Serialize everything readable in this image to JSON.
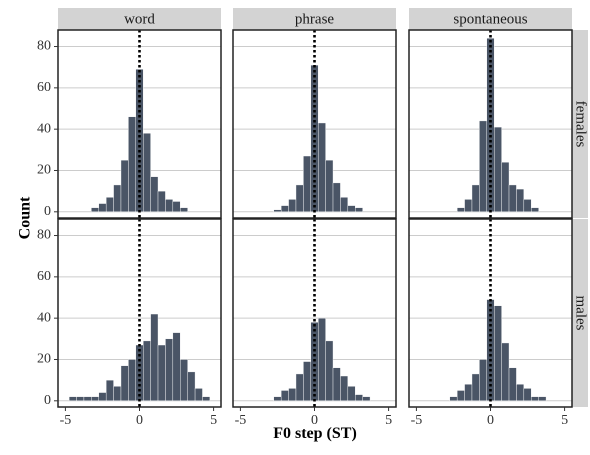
{
  "chart_data": {
    "type": "bar",
    "subtype": "faceted-histogram",
    "xlabel": "F0 step (ST)",
    "ylabel": "Count",
    "xlim": [
      -5.5,
      5.5
    ],
    "ylim": [
      -3,
      88
    ],
    "x_ticks": [
      -5,
      0,
      5
    ],
    "y_ticks": [
      0,
      20,
      40,
      60,
      80
    ],
    "bin_width": 0.5,
    "bin_centers": [
      -4.5,
      -4,
      -3.5,
      -3,
      -2.5,
      -2,
      -1.5,
      -1,
      -0.5,
      0,
      0.5,
      1,
      1.5,
      2,
      2.5,
      3,
      3.5,
      4,
      4.5
    ],
    "reference_line": {
      "x": 0,
      "style": "dotted"
    },
    "grid": true,
    "columns": [
      "word",
      "phrase",
      "spontaneous"
    ],
    "rows": [
      "females",
      "males"
    ],
    "colors": {
      "bar": "#4a5566",
      "bar_stroke": "#ffffff",
      "strip": "#d3d3d3",
      "grid": "#cccccc",
      "panel_border": "#222222",
      "reference_line": "#000000"
    },
    "panels": [
      {
        "column": "word",
        "row": "females",
        "values": [
          0,
          0,
          0,
          2,
          4,
          7,
          13,
          25,
          46,
          69,
          38,
          17,
          10,
          6,
          5,
          2,
          0,
          0,
          0
        ]
      },
      {
        "column": "phrase",
        "row": "females",
        "values": [
          0,
          0,
          0,
          0,
          1,
          3,
          6,
          13,
          27,
          71,
          43,
          25,
          14,
          7,
          3,
          2,
          0,
          0,
          0
        ]
      },
      {
        "column": "spontaneous",
        "row": "females",
        "values": [
          0,
          0,
          0,
          0,
          0,
          2,
          6,
          13,
          44,
          84,
          41,
          24,
          13,
          11,
          6,
          2,
          0,
          0,
          0
        ]
      },
      {
        "column": "word",
        "row": "males",
        "values": [
          2,
          2,
          2,
          2,
          4,
          10,
          7,
          17,
          20,
          27,
          29,
          42,
          27,
          30,
          33,
          20,
          14,
          6,
          2
        ]
      },
      {
        "column": "phrase",
        "row": "males",
        "values": [
          0,
          0,
          0,
          0,
          2,
          5,
          6,
          13,
          19,
          38,
          40,
          29,
          16,
          12,
          7,
          3,
          2,
          0,
          0
        ]
      },
      {
        "column": "spontaneous",
        "row": "males",
        "values": [
          0,
          0,
          0,
          0,
          2,
          5,
          8,
          13,
          20,
          49,
          46,
          28,
          16,
          8,
          6,
          2,
          2,
          0,
          0
        ]
      }
    ]
  }
}
